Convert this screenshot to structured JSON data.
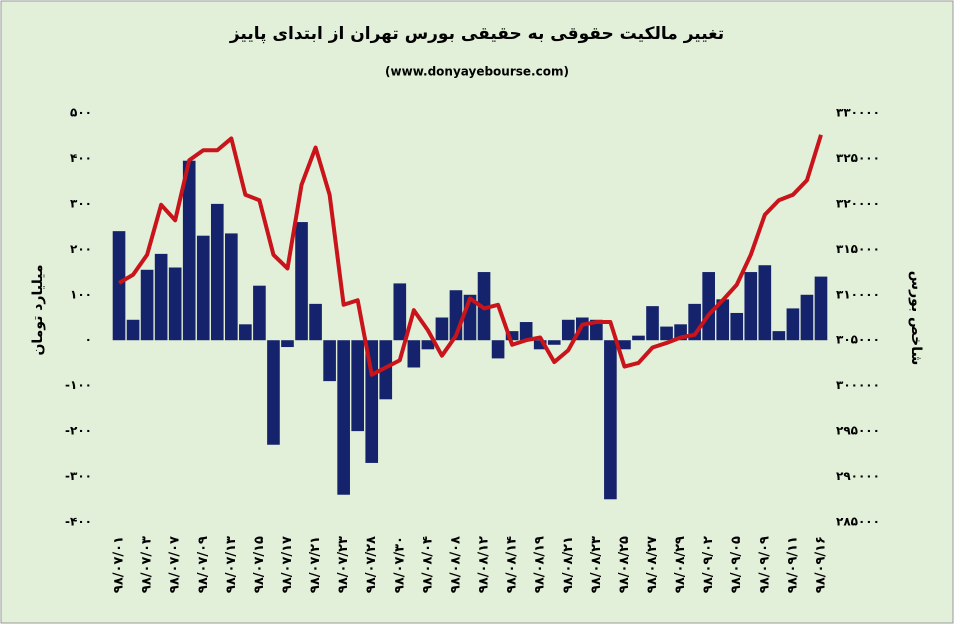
{
  "chart_data": {
    "type": "bar",
    "title": "تغییر مالکیت حقوقی به حقیقی بورس تهران از ابتدای پاییز",
    "subtitle": "(www.donyayebourse.com)",
    "y_label": "میلیارد تومان",
    "y2_label": "شاخص بورس",
    "categories": [
      "۹۸/۰۷/۰۱",
      null,
      "۹۸/۰۷/۰۳",
      null,
      "۹۸/۰۷/۰۷",
      null,
      "۹۸/۰۷/۰۹",
      null,
      "۹۸/۰۷/۱۳",
      null,
      "۹۸/۰۷/۱۵",
      null,
      "۹۸/۰۷/۱۷",
      null,
      "۹۸/۰۷/۲۱",
      null,
      "۹۸/۰۷/۲۳",
      null,
      "۹۸/۰۷/۲۸",
      null,
      "۹۸/۰۷/۳۰",
      null,
      "۹۸/۰۸/۰۴",
      null,
      "۹۸/۰۸/۰۸",
      null,
      "۹۸/۰۸/۱۲",
      null,
      "۹۸/۰۸/۱۴",
      null,
      "۹۸/۰۸/۱۹",
      null,
      "۹۸/۰۸/۲۱",
      null,
      "۹۸/۰۸/۲۳",
      null,
      "۹۸/۰۸/۲۵",
      null,
      "۹۸/۰۸/۲۷",
      null,
      "۹۸/۰۸/۲۹",
      null,
      "۹۸/۰۹/۰۲",
      null,
      "۹۸/۰۹/۰۵",
      null,
      "۹۸/۰۹/۰۹",
      null,
      "۹۸/۰۹/۱۱",
      null,
      "۹۸/۰۹/۱۶"
    ],
    "series": [
      {
        "type": "bar",
        "axis": "y",
        "color": "#14236b",
        "values": [
          240,
          45,
          155,
          190,
          160,
          395,
          230,
          300,
          235,
          35,
          120,
          -230,
          -15,
          260,
          80,
          -90,
          -340,
          -200,
          -270,
          -130,
          125,
          -60,
          -20,
          50,
          110,
          100,
          150,
          -40,
          20,
          40,
          -20,
          -10,
          45,
          50,
          45,
          -350,
          -20,
          10,
          75,
          30,
          35,
          80,
          150,
          90,
          60,
          150,
          165,
          20,
          70,
          100,
          140
        ]
      },
      {
        "type": "line",
        "axis": "y2",
        "color": "#c8141a",
        "values": [
          311300,
          312200,
          314400,
          319900,
          318200,
          324800,
          325900,
          325900,
          327200,
          321000,
          320400,
          314400,
          312900,
          322100,
          326200,
          321000,
          308900,
          309400,
          301200,
          302000,
          302800,
          308300,
          306100,
          303300,
          305500,
          309600,
          308500,
          308900,
          304500,
          305000,
          305300,
          302600,
          303900,
          306700,
          307000,
          307000,
          302100,
          302500,
          304200,
          304700,
          305300,
          305600,
          307800,
          309400,
          311100,
          314400,
          318800,
          320400,
          321000,
          322600,
          327600
        ]
      }
    ],
    "ylim": [
      -400,
      500
    ],
    "yticks": [
      {
        "value": 500,
        "label": "۵۰۰"
      },
      {
        "value": 400,
        "label": "۴۰۰"
      },
      {
        "value": 300,
        "label": "۳۰۰"
      },
      {
        "value": 200,
        "label": "۲۰۰"
      },
      {
        "value": 100,
        "label": "۱۰۰"
      },
      {
        "value": 0,
        "label": "۰"
      },
      {
        "value": -100,
        "label": "-۱۰۰"
      },
      {
        "value": -200,
        "label": "-۲۰۰"
      },
      {
        "value": -300,
        "label": "-۳۰۰"
      },
      {
        "value": -400,
        "label": "-۴۰۰"
      }
    ],
    "y2lim": [
      285000,
      330000
    ],
    "y2ticks": [
      {
        "value": 330000,
        "label": "۳۳۰۰۰۰"
      },
      {
        "value": 325000,
        "label": "۳۲۵۰۰۰"
      },
      {
        "value": 320000,
        "label": "۳۲۰۰۰۰"
      },
      {
        "value": 315000,
        "label": "۳۱۵۰۰۰"
      },
      {
        "value": 310000,
        "label": "۳۱۰۰۰۰"
      },
      {
        "value": 305000,
        "label": "۳۰۵۰۰۰"
      },
      {
        "value": 300000,
        "label": "۳۰۰۰۰۰"
      },
      {
        "value": 295000,
        "label": "۲۹۵۰۰۰"
      },
      {
        "value": 290000,
        "label": "۲۹۰۰۰۰"
      },
      {
        "value": 285000,
        "label": "۲۸۵۰۰۰"
      }
    ]
  }
}
